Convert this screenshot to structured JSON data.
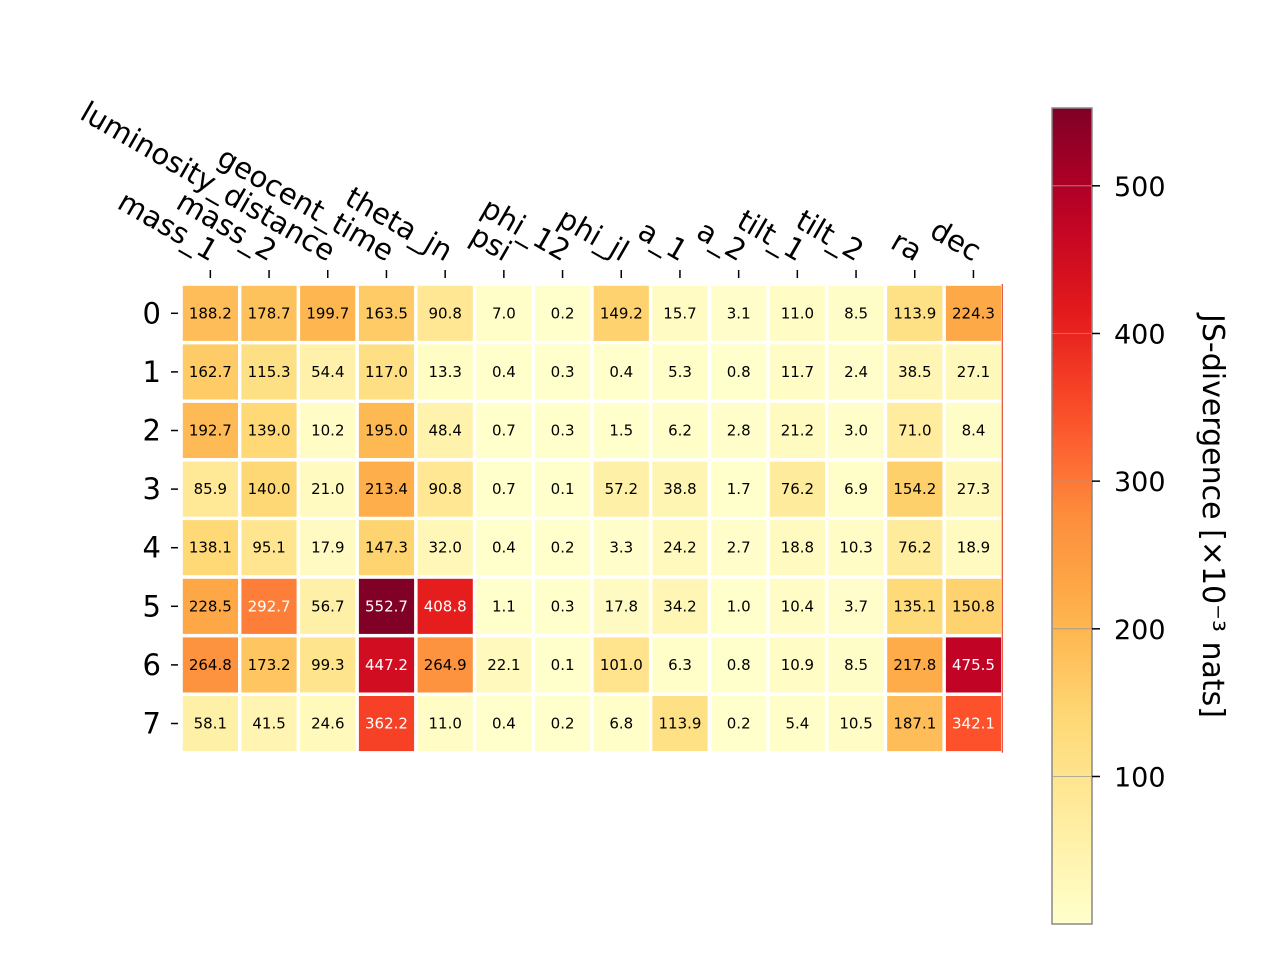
{
  "chart_data": {
    "type": "heatmap",
    "columns": [
      "mass_1",
      "mass_2",
      "luminosity_distance",
      "geocent_time",
      "theta_jn",
      "psi",
      "phi_12",
      "phi_jl",
      "a_1",
      "a_2",
      "tilt_1",
      "tilt_2",
      "ra",
      "dec"
    ],
    "rows": [
      "0",
      "1",
      "2",
      "3",
      "4",
      "5",
      "6",
      "7"
    ],
    "values": [
      [
        188.2,
        178.7,
        199.7,
        163.5,
        90.8,
        7.0,
        0.2,
        149.2,
        15.7,
        3.1,
        11.0,
        8.5,
        113.9,
        224.3
      ],
      [
        162.7,
        115.3,
        54.4,
        117.0,
        13.3,
        0.4,
        0.3,
        0.4,
        5.3,
        0.8,
        11.7,
        2.4,
        38.5,
        27.1
      ],
      [
        192.7,
        139.0,
        10.2,
        195.0,
        48.4,
        0.7,
        0.3,
        1.5,
        6.2,
        2.8,
        21.2,
        3.0,
        71.0,
        8.4
      ],
      [
        85.9,
        140.0,
        21.0,
        213.4,
        90.8,
        0.7,
        0.1,
        57.2,
        38.8,
        1.7,
        76.2,
        6.9,
        154.2,
        27.3
      ],
      [
        138.1,
        95.1,
        17.9,
        147.3,
        32.0,
        0.4,
        0.2,
        3.3,
        24.2,
        2.7,
        18.8,
        10.3,
        76.2,
        18.9
      ],
      [
        228.5,
        292.7,
        56.7,
        552.7,
        408.8,
        1.1,
        0.3,
        17.8,
        34.2,
        1.0,
        10.4,
        3.7,
        135.1,
        150.8
      ],
      [
        264.8,
        173.2,
        99.3,
        447.2,
        264.9,
        22.1,
        0.1,
        101.0,
        6.3,
        0.8,
        10.9,
        8.5,
        217.8,
        475.5
      ],
      [
        58.1,
        41.5,
        24.6,
        362.2,
        11.0,
        0.4,
        0.2,
        6.8,
        113.9,
        0.2,
        5.4,
        10.5,
        187.1,
        342.1
      ]
    ],
    "colormap": "YlOrRd",
    "colorbar": {
      "label": "JS-divergence [×10⁻³ nats]",
      "ticks": [
        100,
        200,
        300,
        400,
        500
      ],
      "range": [
        0.1,
        552.7
      ]
    }
  }
}
